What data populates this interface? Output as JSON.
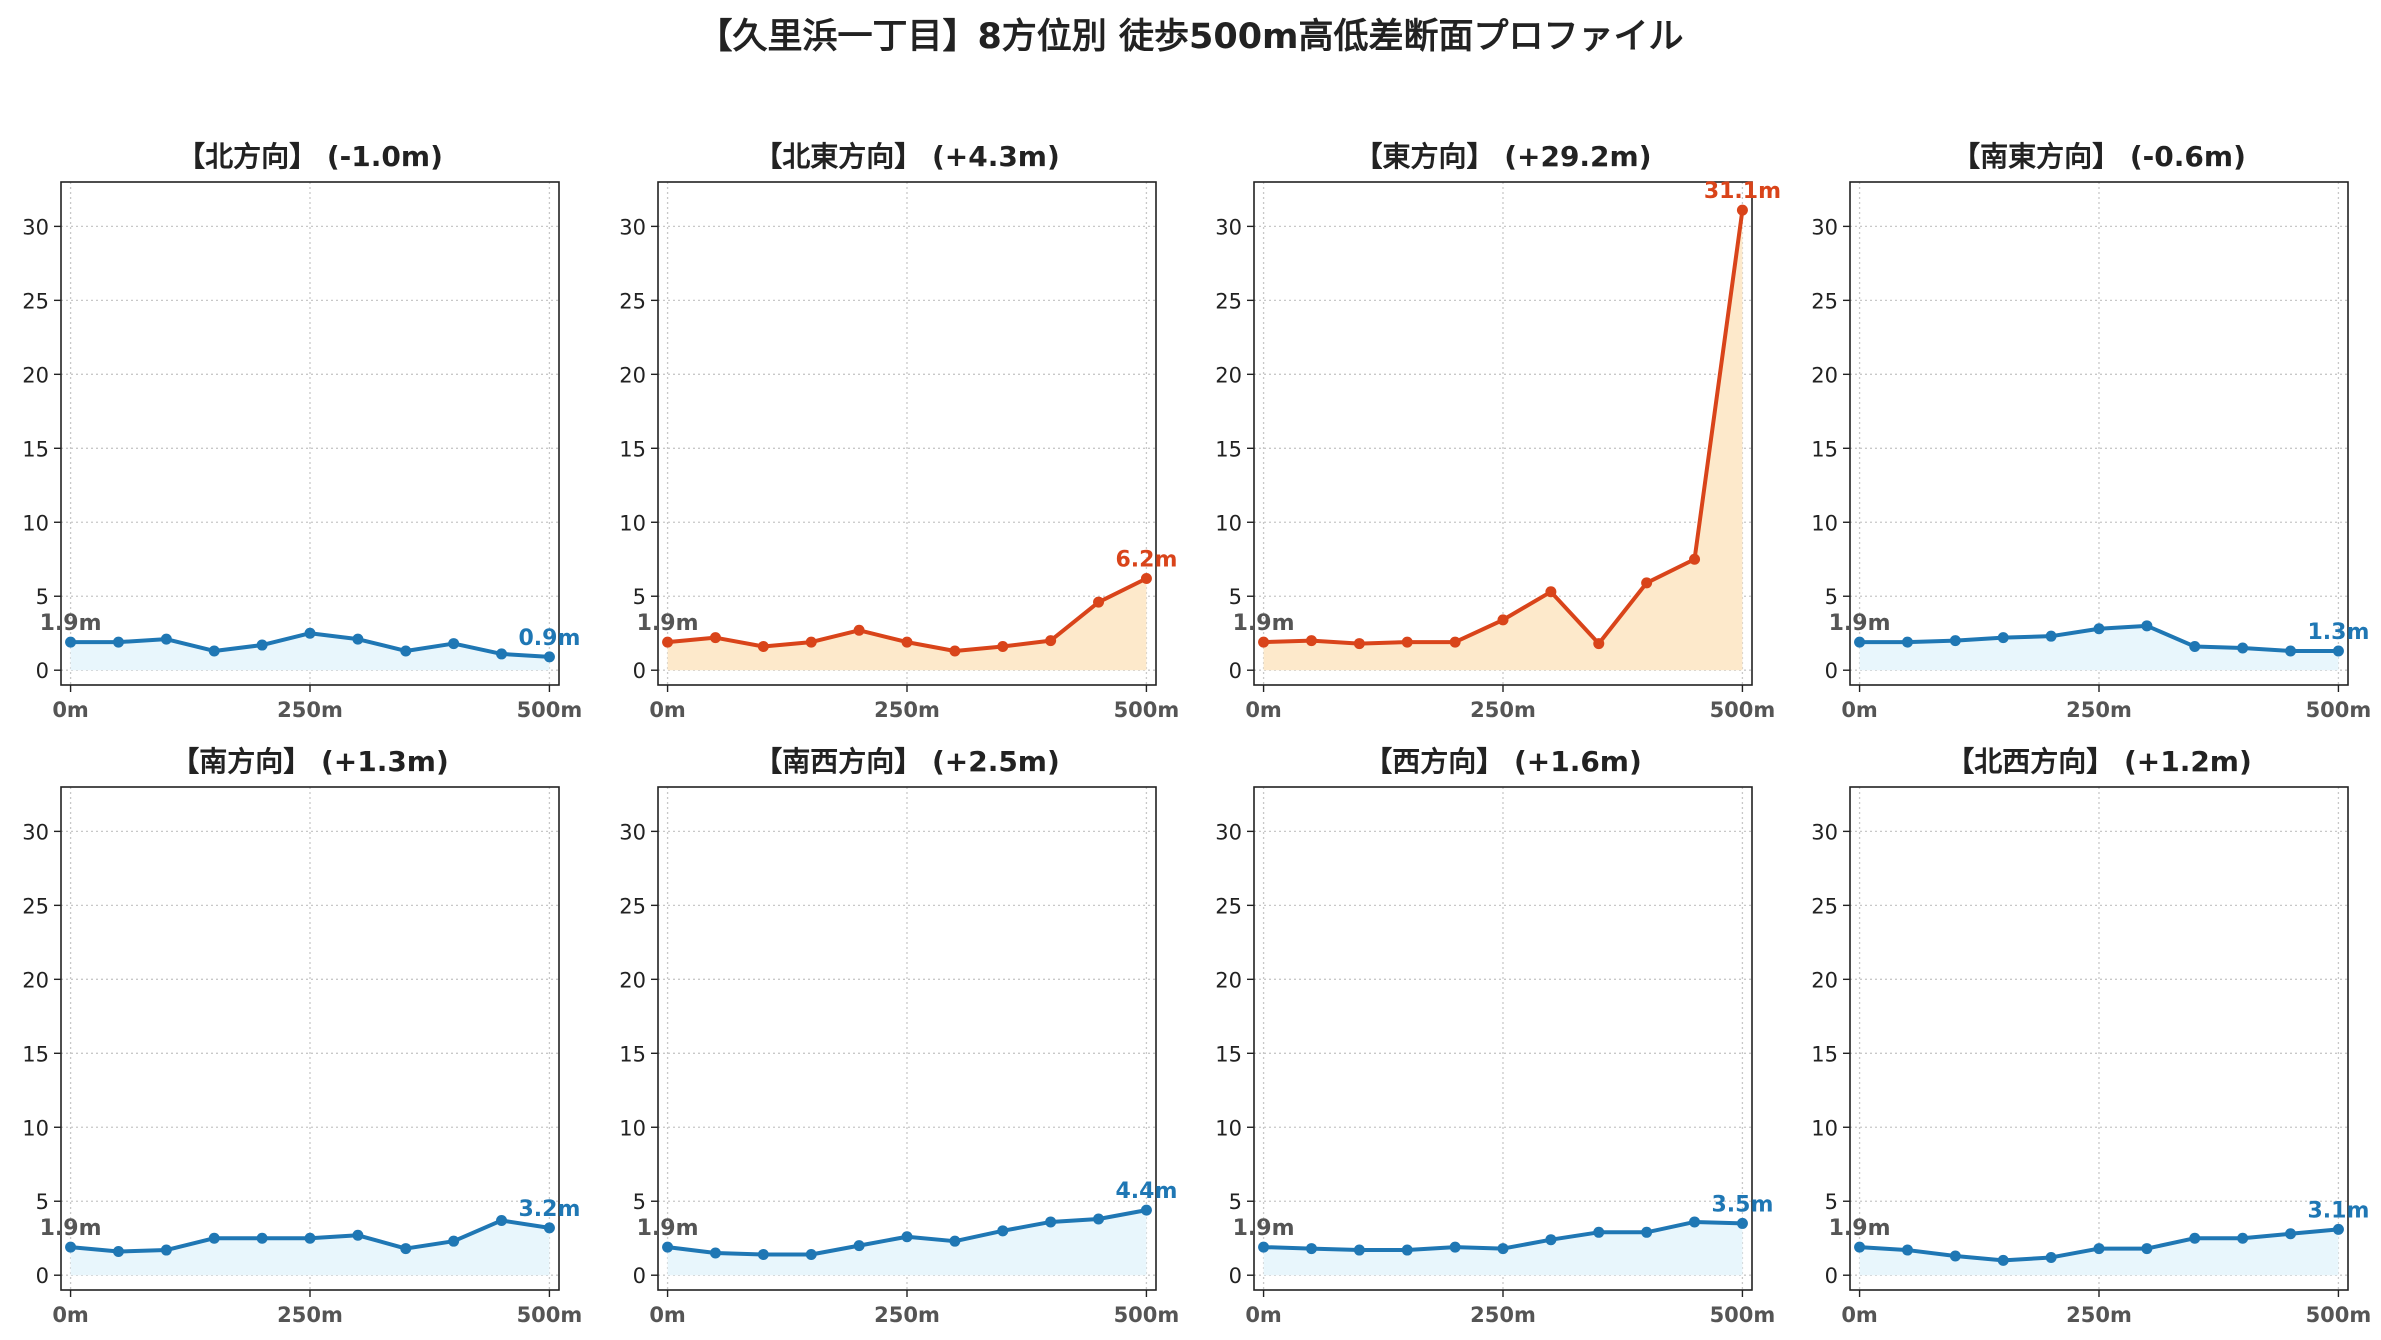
{
  "title": "【久里浜一丁目】8方位別 徒歩500m高低差断面プロファイル",
  "colors": {
    "up": "#d9441a",
    "up_fill": "#fde9cb",
    "down": "#1f77b4",
    "down_fill": "#e8f6fc",
    "grid": "#c8c8c8"
  },
  "chart_data": [
    {
      "type": "area",
      "title": "【北方向】 (-1.0m)",
      "trend": "down",
      "x": [
        0,
        50,
        100,
        150,
        200,
        250,
        300,
        350,
        400,
        450,
        500
      ],
      "y": [
        1.9,
        1.9,
        2.1,
        1.3,
        1.7,
        2.5,
        2.1,
        1.3,
        1.8,
        1.1,
        0.9
      ],
      "start_label": "1.9m",
      "end_label": "0.9m",
      "xticks": [
        "0m",
        "250m",
        "500m"
      ],
      "yticks": [
        0,
        5,
        10,
        15,
        20,
        25,
        30
      ],
      "ylim": [
        -1,
        33
      ],
      "xlim": [
        -10,
        510
      ],
      "grid": true
    },
    {
      "type": "area",
      "title": "【北東方向】 (+4.3m)",
      "trend": "up",
      "x": [
        0,
        50,
        100,
        150,
        200,
        250,
        300,
        350,
        400,
        450,
        500
      ],
      "y": [
        1.9,
        2.2,
        1.6,
        1.9,
        2.7,
        1.9,
        1.3,
        1.6,
        2.0,
        4.6,
        6.2
      ],
      "start_label": "1.9m",
      "end_label": "6.2m",
      "xticks": [
        "0m",
        "250m",
        "500m"
      ],
      "yticks": [
        0,
        5,
        10,
        15,
        20,
        25,
        30
      ],
      "ylim": [
        -1,
        33
      ],
      "xlim": [
        -10,
        510
      ],
      "grid": true
    },
    {
      "type": "area",
      "title": "【東方向】 (+29.2m)",
      "trend": "up",
      "x": [
        0,
        50,
        100,
        150,
        200,
        250,
        300,
        350,
        400,
        450,
        500
      ],
      "y": [
        1.9,
        2.0,
        1.8,
        1.9,
        1.9,
        3.4,
        5.3,
        1.8,
        5.9,
        7.5,
        31.1
      ],
      "start_label": "1.9m",
      "end_label": "31.1m",
      "xticks": [
        "0m",
        "250m",
        "500m"
      ],
      "yticks": [
        0,
        5,
        10,
        15,
        20,
        25,
        30
      ],
      "ylim": [
        -1,
        33
      ],
      "xlim": [
        -10,
        510
      ],
      "grid": true
    },
    {
      "type": "area",
      "title": "【南東方向】 (-0.6m)",
      "trend": "down",
      "x": [
        0,
        50,
        100,
        150,
        200,
        250,
        300,
        350,
        400,
        450,
        500
      ],
      "y": [
        1.9,
        1.9,
        2.0,
        2.2,
        2.3,
        2.8,
        3.0,
        1.6,
        1.5,
        1.3,
        1.3
      ],
      "start_label": "1.9m",
      "end_label": "1.3m",
      "xticks": [
        "0m",
        "250m",
        "500m"
      ],
      "yticks": [
        0,
        5,
        10,
        15,
        20,
        25,
        30
      ],
      "ylim": [
        -1,
        33
      ],
      "xlim": [
        -10,
        510
      ],
      "grid": true
    },
    {
      "type": "area",
      "title": "【南方向】 (+1.3m)",
      "trend": "down",
      "x": [
        0,
        50,
        100,
        150,
        200,
        250,
        300,
        350,
        400,
        450,
        500
      ],
      "y": [
        1.9,
        1.6,
        1.7,
        2.5,
        2.5,
        2.5,
        2.7,
        1.8,
        2.3,
        3.7,
        3.2
      ],
      "start_label": "1.9m",
      "end_label": "3.2m",
      "xticks": [
        "0m",
        "250m",
        "500m"
      ],
      "yticks": [
        0,
        5,
        10,
        15,
        20,
        25,
        30
      ],
      "ylim": [
        -1,
        33
      ],
      "xlim": [
        -10,
        510
      ],
      "grid": true
    },
    {
      "type": "area",
      "title": "【南西方向】 (+2.5m)",
      "trend": "down",
      "x": [
        0,
        50,
        100,
        150,
        200,
        250,
        300,
        350,
        400,
        450,
        500
      ],
      "y": [
        1.9,
        1.5,
        1.4,
        1.4,
        2.0,
        2.6,
        2.3,
        3.0,
        3.6,
        3.8,
        4.4
      ],
      "start_label": "1.9m",
      "end_label": "4.4m",
      "xticks": [
        "0m",
        "250m",
        "500m"
      ],
      "yticks": [
        0,
        5,
        10,
        15,
        20,
        25,
        30
      ],
      "ylim": [
        -1,
        33
      ],
      "xlim": [
        -10,
        510
      ],
      "grid": true
    },
    {
      "type": "area",
      "title": "【西方向】 (+1.6m)",
      "trend": "down",
      "x": [
        0,
        50,
        100,
        150,
        200,
        250,
        300,
        350,
        400,
        450,
        500
      ],
      "y": [
        1.9,
        1.8,
        1.7,
        1.7,
        1.9,
        1.8,
        2.4,
        2.9,
        2.9,
        3.6,
        3.5
      ],
      "start_label": "1.9m",
      "end_label": "3.5m",
      "xticks": [
        "0m",
        "250m",
        "500m"
      ],
      "yticks": [
        0,
        5,
        10,
        15,
        20,
        25,
        30
      ],
      "ylim": [
        -1,
        33
      ],
      "xlim": [
        -10,
        510
      ],
      "grid": true
    },
    {
      "type": "area",
      "title": "【北西方向】 (+1.2m)",
      "trend": "down",
      "x": [
        0,
        50,
        100,
        150,
        200,
        250,
        300,
        350,
        400,
        450,
        500
      ],
      "y": [
        1.9,
        1.7,
        1.3,
        1.0,
        1.2,
        1.8,
        1.8,
        2.5,
        2.5,
        2.8,
        3.1
      ],
      "start_label": "1.9m",
      "end_label": "3.1m",
      "xticks": [
        "0m",
        "250m",
        "500m"
      ],
      "yticks": [
        0,
        5,
        10,
        15,
        20,
        25,
        30
      ],
      "ylim": [
        -1,
        33
      ],
      "xlim": [
        -10,
        510
      ],
      "grid": true
    }
  ]
}
